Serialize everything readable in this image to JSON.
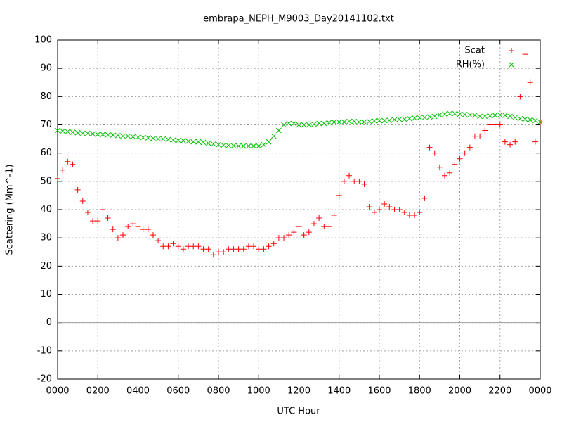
{
  "chart_data": {
    "type": "scatter",
    "title": "embrapa_NEPH_M9003_Day20141102.txt",
    "xlabel": "UTC Hour",
    "ylabel": "Scattering (Mm^-1)",
    "x": [
      0,
      0.25,
      0.5,
      0.75,
      1,
      1.25,
      1.5,
      1.75,
      2,
      2.25,
      2.5,
      2.75,
      3,
      3.25,
      3.5,
      3.75,
      4,
      4.25,
      4.5,
      4.75,
      5,
      5.25,
      5.5,
      5.75,
      6,
      6.25,
      6.5,
      6.75,
      7,
      7.25,
      7.5,
      7.75,
      8,
      8.25,
      8.5,
      8.75,
      9,
      9.25,
      9.5,
      9.75,
      10,
      10.25,
      10.5,
      10.75,
      11,
      11.25,
      11.5,
      11.75,
      12,
      12.25,
      12.5,
      12.75,
      13,
      13.25,
      13.5,
      13.75,
      14,
      14.25,
      14.5,
      14.75,
      15,
      15.25,
      15.5,
      15.75,
      16,
      16.25,
      16.5,
      16.75,
      17,
      17.25,
      17.5,
      17.75,
      18,
      18.25,
      18.5,
      18.75,
      19,
      19.25,
      19.5,
      19.75,
      20,
      20.25,
      20.5,
      20.75,
      21,
      21.25,
      21.5,
      21.75,
      22,
      22.25,
      22.5,
      22.75,
      23,
      23.25,
      23.5,
      23.75,
      24
    ],
    "series": [
      {
        "name": "Scat",
        "color": "#ff0000",
        "marker": "plus",
        "values": [
          51,
          54,
          57,
          56,
          47,
          43,
          39,
          36,
          36,
          40,
          37,
          33,
          30,
          31,
          34,
          35,
          34,
          33,
          33,
          31,
          29,
          27,
          27,
          28,
          27,
          26,
          27,
          27,
          27,
          26,
          26,
          24,
          25,
          25,
          26,
          26,
          26,
          26,
          27,
          27,
          26,
          26,
          27,
          28,
          30,
          30,
          31,
          32,
          34,
          31,
          32,
          35,
          37,
          34,
          34,
          38,
          45,
          50,
          52,
          50,
          50,
          49,
          41,
          39,
          40,
          42,
          41,
          40,
          40,
          39,
          38,
          38,
          39,
          44,
          62,
          60,
          55,
          52,
          53,
          56,
          58,
          60,
          62,
          66,
          66,
          68,
          70,
          70,
          70,
          64,
          63,
          64,
          80,
          95,
          85,
          64,
          71
        ]
      },
      {
        "name": "RH(%)",
        "color": "#00c000",
        "marker": "cross",
        "values": [
          68,
          67.8,
          67.6,
          67.4,
          67.2,
          67,
          67,
          66.8,
          66.6,
          66.6,
          66.5,
          66.4,
          66.2,
          66,
          66,
          65.8,
          65.6,
          65.5,
          65.4,
          65.2,
          65,
          65,
          64.8,
          64.6,
          64.5,
          64.4,
          64.2,
          64,
          64,
          63.8,
          63.5,
          63.2,
          63,
          62.8,
          62.7,
          62.6,
          62.5,
          62.5,
          62.5,
          62.5,
          62.5,
          63,
          64,
          66,
          68,
          70,
          70.5,
          70.5,
          70,
          70,
          70,
          70.2,
          70.5,
          70.5,
          70.8,
          71,
          71,
          71,
          71.2,
          71.2,
          71,
          71,
          71.2,
          71.4,
          71.5,
          71.5,
          71.6,
          71.8,
          72,
          72,
          72.2,
          72.4,
          72.5,
          72.6,
          72.8,
          73,
          73.5,
          73.8,
          74,
          74,
          73.8,
          73.6,
          73.5,
          73.4,
          73,
          73,
          73.2,
          73.4,
          73.5,
          73.4,
          73,
          72.6,
          72.2,
          72,
          71.8,
          71.5,
          71
        ]
      }
    ],
    "xlim": [
      0,
      24
    ],
    "xticks": [
      {
        "value": 0,
        "label": "0000"
      },
      {
        "value": 2,
        "label": "0200"
      },
      {
        "value": 4,
        "label": "0400"
      },
      {
        "value": 6,
        "label": "0600"
      },
      {
        "value": 8,
        "label": "0800"
      },
      {
        "value": 10,
        "label": "1000"
      },
      {
        "value": 12,
        "label": "1200"
      },
      {
        "value": 14,
        "label": "1400"
      },
      {
        "value": 16,
        "label": "1600"
      },
      {
        "value": 18,
        "label": "1800"
      },
      {
        "value": 20,
        "label": "2000"
      },
      {
        "value": 22,
        "label": "2200"
      },
      {
        "value": 24,
        "label": "0000"
      }
    ],
    "ylim": [
      -20,
      100
    ],
    "yticks": [
      -20,
      -10,
      0,
      10,
      20,
      30,
      40,
      50,
      60,
      70,
      80,
      90,
      100
    ],
    "grid": true,
    "legend": "top-right"
  }
}
